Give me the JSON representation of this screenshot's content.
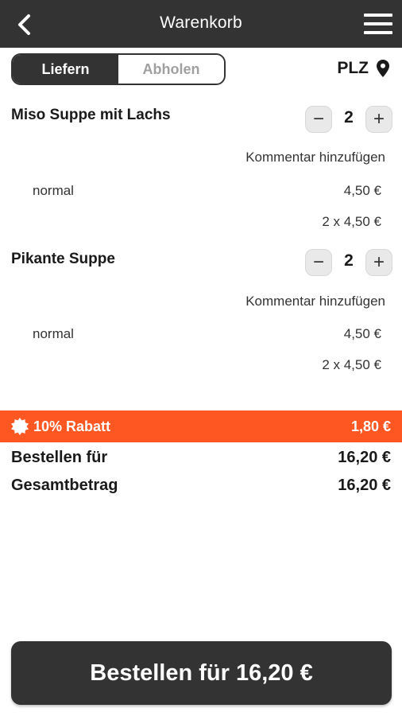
{
  "header": {
    "title": "Warenkorb"
  },
  "delivery_toggle": {
    "options": [
      "Liefern",
      "Abholen"
    ],
    "selected": "Liefern"
  },
  "plz": {
    "label": "PLZ"
  },
  "cart": {
    "items": [
      {
        "name": "Miso Suppe mit Lachs",
        "quantity": "2",
        "comment_label": "Kommentar hinzufügen",
        "variant": "normal",
        "unit_price": "4,50 €",
        "line_total": "2 x 4,50 €"
      },
      {
        "name": "Pikante Suppe",
        "quantity": "2",
        "comment_label": "Kommentar hinzufügen",
        "variant": "normal",
        "unit_price": "4,50 €",
        "line_total": "2 x 4,50 €"
      }
    ]
  },
  "discount": {
    "label": "10% Rabatt",
    "amount": "1,80 €",
    "color": "#ff5722"
  },
  "summary": {
    "order_for_label": "Bestellen für",
    "order_for_value": "16,20 €",
    "total_label": "Gesamtbetrag",
    "total_value": "16,20 €"
  },
  "order_button": {
    "label": "Bestellen für 16,20 €"
  },
  "icons": [
    "back-arrow-icon",
    "hamburger-menu-icon",
    "location-pin-icon",
    "minus-icon",
    "plus-icon",
    "discount-badge-icon"
  ]
}
